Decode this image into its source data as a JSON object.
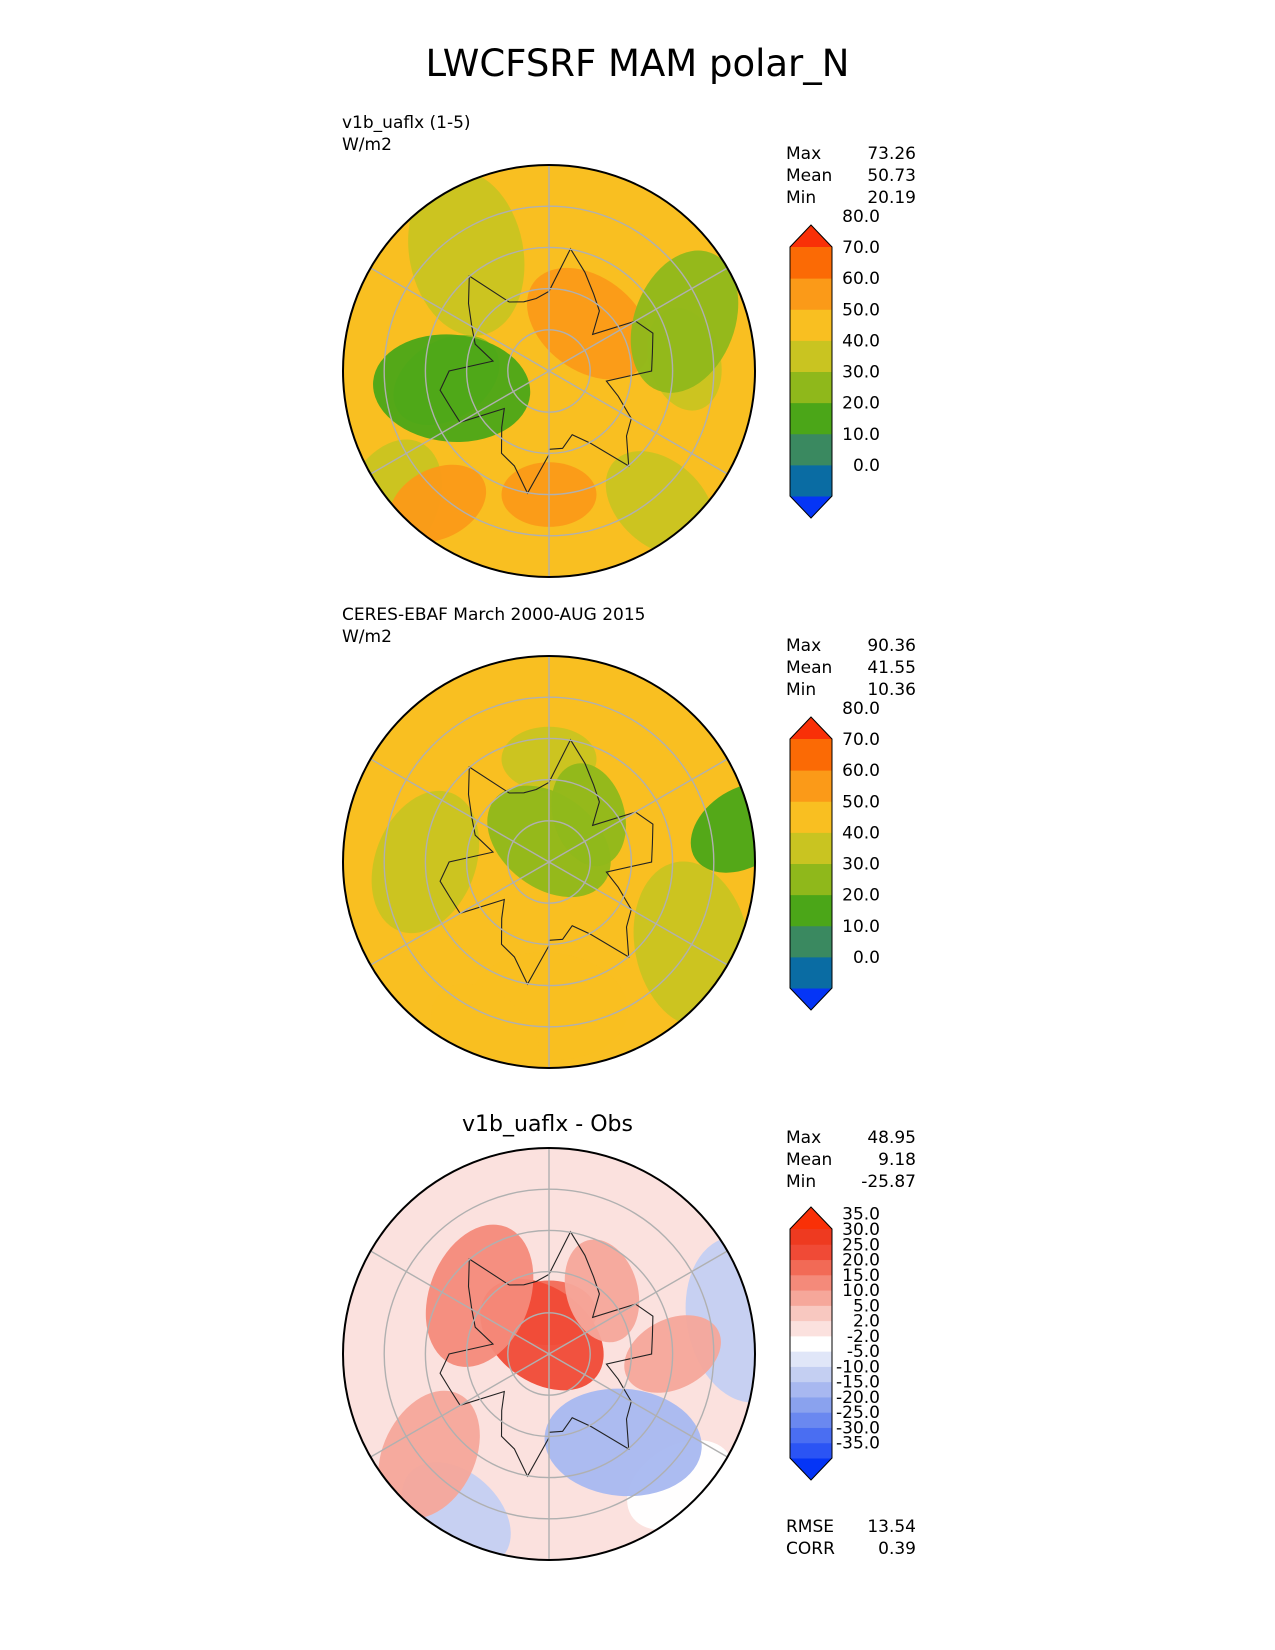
{
  "figure": {
    "title": "LWCFSRF MAM polar_N"
  },
  "panels": [
    {
      "label_line1": "v1b_uaflx (1-5)",
      "label_line2": "W/m2",
      "stats": {
        "max_label": "Max",
        "max": "73.26",
        "mean_label": "Mean",
        "mean": "50.73",
        "min_label": "Min",
        "min": "20.19"
      }
    },
    {
      "label_line1": "CERES-EBAF March 2000-AUG 2015",
      "label_line2": "W/m2",
      "stats": {
        "max_label": "Max",
        "max": "90.36",
        "mean_label": "Mean",
        "mean": "41.55",
        "min_label": "Min",
        "min": "10.36"
      }
    },
    {
      "title": "v1b_uaflx - Obs",
      "stats": {
        "max_label": "Max",
        "max": "48.95",
        "mean_label": "Mean",
        "mean": "9.18",
        "min_label": "Min",
        "min": "-25.87"
      },
      "metrics": {
        "rmse_label": "RMSE",
        "rmse": "13.54",
        "corr_label": "CORR",
        "corr": "0.39"
      }
    }
  ],
  "chart_data": [
    {
      "type": "heatmap",
      "projection": "north-polar-stereographic",
      "title": "v1b_uaflx (1-5)",
      "units": "W/m2",
      "colorbar_ticks": [
        "0.0",
        "10.0",
        "20.0",
        "30.0",
        "40.0",
        "50.0",
        "60.0",
        "70.0",
        "80.0"
      ],
      "colorbar_colors": [
        "#0535f6",
        "#0a6ca3",
        "#3a8960",
        "#4ba618",
        "#8fb81b",
        "#c9c421",
        "#f9bf21",
        "#fb9a18",
        "#fb6a05",
        "#f93007"
      ],
      "colorbar_extend": "both",
      "stats": {
        "max": 73.26,
        "mean": 50.73,
        "min": 20.19
      },
      "background_fill": "#f9bf21",
      "regions": [
        {
          "value": 62,
          "lon": 0,
          "lat": 60
        },
        {
          "value": 62,
          "lon": 140,
          "lat": 75
        },
        {
          "value": 45,
          "lon": 95,
          "lat": 57
        },
        {
          "value": 35,
          "lon": 110,
          "lat": 55
        },
        {
          "value": 35,
          "lon": 275,
          "lat": 65
        },
        {
          "value": 25,
          "lon": 280,
          "lat": 66
        },
        {
          "value": 45,
          "lon": 40,
          "lat": 48
        },
        {
          "value": 45,
          "lon": 215,
          "lat": 55
        },
        {
          "value": 45,
          "lon": 310,
          "lat": 40
        },
        {
          "value": 62,
          "lon": 320,
          "lat": 48
        }
      ]
    },
    {
      "type": "heatmap",
      "projection": "north-polar-stereographic",
      "title": "CERES-EBAF March 2000-AUG 2015",
      "units": "W/m2",
      "colorbar_ticks": [
        "0.0",
        "10.0",
        "20.0",
        "30.0",
        "40.0",
        "50.0",
        "60.0",
        "70.0",
        "80.0"
      ],
      "colorbar_colors": [
        "#0535f6",
        "#0a6ca3",
        "#3a8960",
        "#4ba618",
        "#8fb81b",
        "#c9c421",
        "#f9bf21",
        "#fb9a18",
        "#fb6a05",
        "#f93007"
      ],
      "colorbar_extend": "both",
      "stats": {
        "max": 90.36,
        "mean": 41.55,
        "min": 10.36
      },
      "background_fill": "#f9bf21",
      "regions": [
        {
          "value": 45,
          "lon": 180,
          "lat": 65
        },
        {
          "value": 35,
          "lon": 180,
          "lat": 85
        },
        {
          "value": 35,
          "lon": 140,
          "lat": 75
        },
        {
          "value": 45,
          "lon": 270,
          "lat": 60
        },
        {
          "value": 25,
          "lon": 100,
          "lat": 42
        },
        {
          "value": 55,
          "lon": 0,
          "lat": 55
        },
        {
          "value": 55,
          "lon": 340,
          "lat": 45
        },
        {
          "value": 45,
          "lon": 60,
          "lat": 50
        }
      ]
    },
    {
      "type": "heatmap",
      "projection": "north-polar-stereographic",
      "title": "v1b_uaflx - Obs",
      "colorbar_ticks": [
        "-35.0",
        "-30.0",
        "-25.0",
        "-20.0",
        "-15.0",
        "-10.0",
        "-5.0",
        "-2.0",
        "2.0",
        "5.0",
        "10.0",
        "15.0",
        "20.0",
        "25.0",
        "30.0",
        "35.0"
      ],
      "colorbar_colors": [
        "#0535f6",
        "#2b54f4",
        "#4a6ef2",
        "#6a88f0",
        "#8aa2ee",
        "#a8b8f0",
        "#c4cff2",
        "#e0e6f8",
        "#ffffff",
        "#fbe1de",
        "#f8c8c0",
        "#f6a79a",
        "#f48a7a",
        "#f26a56",
        "#f04a36",
        "#ee3a20",
        "#f93007"
      ],
      "colorbar_extend": "both",
      "stats": {
        "max": 48.95,
        "mean": 9.18,
        "min": -25.87
      },
      "rmse": 13.54,
      "corr": 0.39,
      "background_fill": "#fbe1de",
      "regions": [
        {
          "value": 20,
          "lon": 180,
          "lat": 80
        },
        {
          "value": 27,
          "lon": 200,
          "lat": 85
        },
        {
          "value": 12,
          "lon": 140,
          "lat": 70
        },
        {
          "value": 15,
          "lon": 230,
          "lat": 68
        },
        {
          "value": 0,
          "lon": 45,
          "lat": 45
        },
        {
          "value": -12,
          "lon": 40,
          "lat": 62
        },
        {
          "value": -8,
          "lon": 330,
          "lat": 45
        },
        {
          "value": -6,
          "lon": 100,
          "lat": 42
        },
        {
          "value": 12,
          "lon": 310,
          "lat": 52
        },
        {
          "value": 10,
          "lon": 90,
          "lat": 60
        }
      ]
    }
  ]
}
